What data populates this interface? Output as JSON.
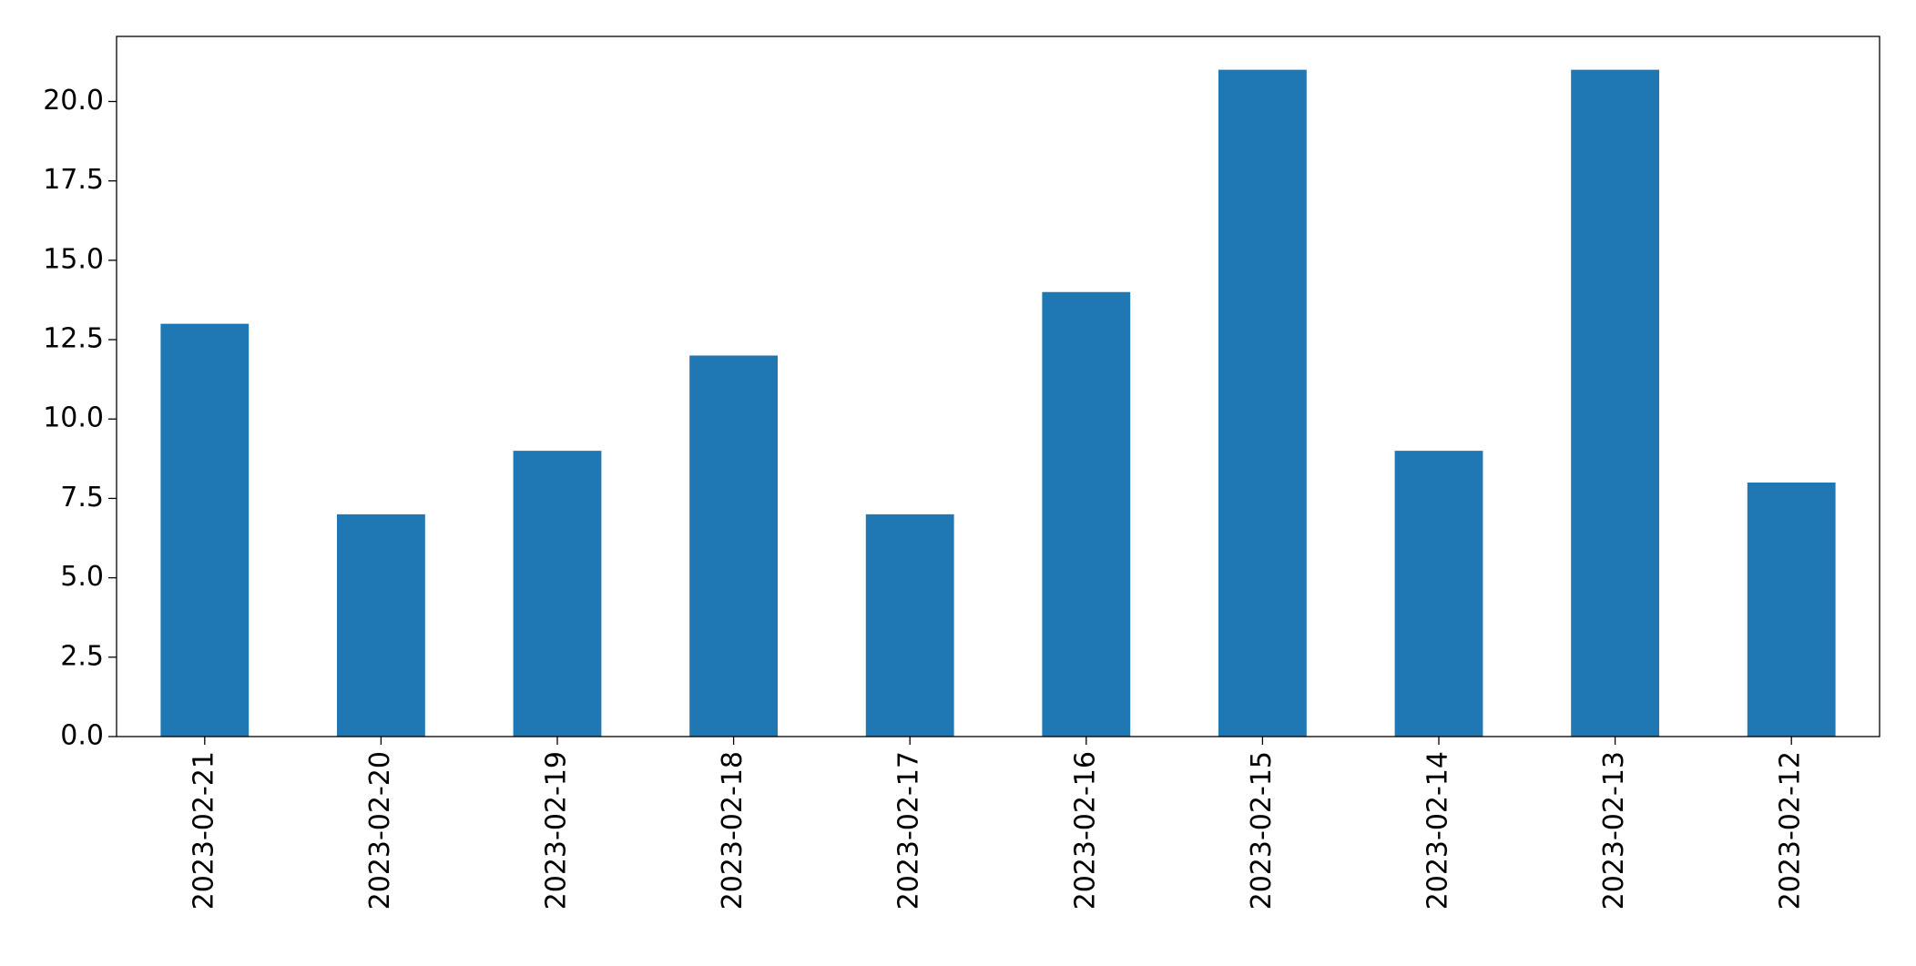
{
  "chart_data": {
    "type": "bar",
    "categories": [
      "2023-02-21",
      "2023-02-20",
      "2023-02-19",
      "2023-02-18",
      "2023-02-17",
      "2023-02-16",
      "2023-02-15",
      "2023-02-14",
      "2023-02-13",
      "2023-02-12"
    ],
    "values": [
      13,
      7,
      9,
      12,
      7,
      14,
      21,
      9,
      21,
      8
    ],
    "color": "#1f77b4",
    "ylim": [
      0,
      22.05
    ],
    "yticks": [
      {
        "value": 0,
        "label": "0.0"
      },
      {
        "value": 2.5,
        "label": "2.5"
      },
      {
        "value": 5,
        "label": "5.0"
      },
      {
        "value": 7.5,
        "label": "7.5"
      },
      {
        "value": 10,
        "label": "10.0"
      },
      {
        "value": 12.5,
        "label": "12.5"
      },
      {
        "value": 15,
        "label": "15.0"
      },
      {
        "value": 17.5,
        "label": "17.5"
      },
      {
        "value": 20,
        "label": "20.0"
      }
    ],
    "grid": false
  }
}
